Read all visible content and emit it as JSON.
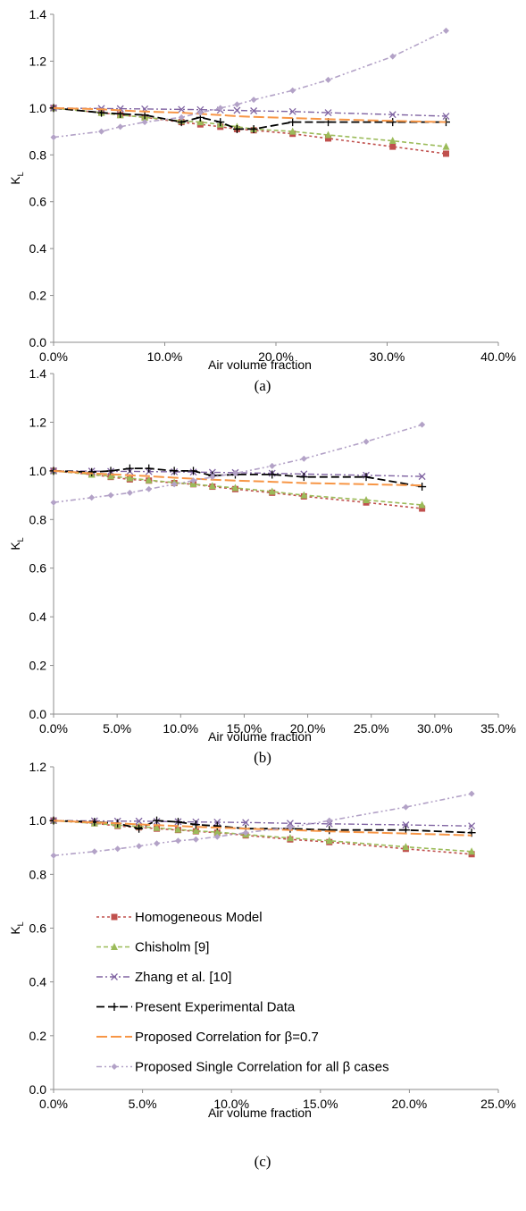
{
  "colors": {
    "homogeneous": "#c0504d",
    "chisholm": "#9bbb59",
    "zhang": "#8064a2",
    "experimental": "#000000",
    "proposed": "#f79646",
    "single": "#b3a2c7"
  },
  "legend": [
    {
      "key": "homogeneous",
      "label": "Homogeneous Model"
    },
    {
      "key": "chisholm",
      "label": "Chisholm [9]"
    },
    {
      "key": "zhang",
      "label": "Zhang et al. [10]"
    },
    {
      "key": "experimental",
      "label": "Present Experimental Data"
    },
    {
      "key": "proposed",
      "label": "Proposed Correlation for  β=0.7"
    },
    {
      "key": "single",
      "label": "Proposed Single Correlation for all β cases"
    }
  ],
  "chart_data": [
    {
      "type": "line",
      "caption": "(a)",
      "xlabel": "Air volume fraction",
      "ylabel": "K",
      "ylabel_sub": "L",
      "xlim": [
        0,
        40
      ],
      "ylim": [
        0,
        1.4
      ],
      "xticks": [
        "0.0%",
        "10.0%",
        "20.0%",
        "30.0%",
        "40.0%"
      ],
      "yticks": [
        "0.0",
        "0.2",
        "0.4",
        "0.6",
        "0.8",
        "1.0",
        "1.2",
        "1.4"
      ],
      "series": [
        {
          "key": "homogeneous",
          "x": [
            0,
            4.3,
            6,
            8.2,
            11.5,
            13.2,
            15,
            16.5,
            18,
            21.5,
            24.7,
            30.5,
            35.3
          ],
          "y": [
            1.0,
            0.98,
            0.97,
            0.96,
            0.94,
            0.93,
            0.92,
            0.91,
            0.905,
            0.89,
            0.87,
            0.835,
            0.805
          ]
        },
        {
          "key": "chisholm",
          "x": [
            0,
            4.3,
            6,
            8.2,
            11.5,
            13.2,
            15,
            16.5,
            18,
            21.5,
            24.7,
            30.5,
            35.3
          ],
          "y": [
            1.0,
            0.98,
            0.97,
            0.96,
            0.945,
            0.94,
            0.93,
            0.92,
            0.91,
            0.9,
            0.885,
            0.86,
            0.835
          ]
        },
        {
          "key": "zhang",
          "x": [
            0,
            4.3,
            6,
            8.2,
            11.5,
            13.2,
            15,
            16.5,
            18,
            21.5,
            24.7,
            30.5,
            35.3
          ],
          "y": [
            1.0,
            0.998,
            0.997,
            0.996,
            0.994,
            0.993,
            0.991,
            0.99,
            0.988,
            0.985,
            0.98,
            0.972,
            0.965
          ]
        },
        {
          "key": "experimental",
          "x": [
            0,
            4.3,
            6,
            8.2,
            11.5,
            13.2,
            15,
            16.5,
            18,
            21.5,
            24.7,
            30.5,
            35.3
          ],
          "y": [
            1.0,
            0.98,
            0.975,
            0.97,
            0.94,
            0.96,
            0.94,
            0.91,
            0.91,
            0.94,
            0.94,
            0.94,
            0.94
          ]
        },
        {
          "key": "proposed",
          "x": [
            0,
            4.3,
            6,
            8.2,
            11.5,
            13.2,
            15,
            16.5,
            18,
            21.5,
            24.7,
            30.5,
            35.3
          ],
          "y": [
            1.0,
            0.995,
            0.99,
            0.985,
            0.98,
            0.975,
            0.97,
            0.965,
            0.962,
            0.957,
            0.952,
            0.945,
            0.94
          ]
        },
        {
          "key": "single",
          "x": [
            0,
            4.3,
            6,
            8.2,
            11.5,
            13.2,
            15,
            16.5,
            18,
            21.5,
            24.7,
            30.5,
            35.3
          ],
          "y": [
            0.875,
            0.9,
            0.92,
            0.94,
            0.96,
            0.98,
            1.0,
            1.015,
            1.035,
            1.075,
            1.12,
            1.22,
            1.33
          ]
        }
      ]
    },
    {
      "type": "line",
      "caption": "(b)",
      "xlabel": "Air volume fraction",
      "ylabel": "K",
      "ylabel_sub": "L",
      "xlim": [
        0,
        35
      ],
      "ylim": [
        0,
        1.4
      ],
      "xticks": [
        "0.0%",
        "5.0%",
        "10.0%",
        "15.0%",
        "20.0%",
        "25.0%",
        "30.0%",
        "35.0%"
      ],
      "yticks": [
        "0.0",
        "0.2",
        "0.4",
        "0.6",
        "0.8",
        "1.0",
        "1.2",
        "1.4"
      ],
      "series": [
        {
          "key": "homogeneous",
          "x": [
            0,
            3,
            4.5,
            6,
            7.5,
            9.5,
            11,
            12.5,
            14.3,
            17.2,
            19.7,
            24.6,
            29
          ],
          "y": [
            1.0,
            0.985,
            0.975,
            0.965,
            0.96,
            0.95,
            0.945,
            0.935,
            0.925,
            0.91,
            0.895,
            0.87,
            0.845
          ]
        },
        {
          "key": "chisholm",
          "x": [
            0,
            3,
            4.5,
            6,
            7.5,
            9.5,
            11,
            12.5,
            14.3,
            17.2,
            19.7,
            24.6,
            29
          ],
          "y": [
            1.0,
            0.985,
            0.978,
            0.97,
            0.962,
            0.952,
            0.946,
            0.938,
            0.93,
            0.915,
            0.9,
            0.88,
            0.86
          ]
        },
        {
          "key": "zhang",
          "x": [
            0,
            3,
            4.5,
            6,
            7.5,
            9.5,
            11,
            12.5,
            14.3,
            17.2,
            19.7,
            24.6,
            29
          ],
          "y": [
            1.0,
            0.999,
            0.998,
            0.998,
            0.997,
            0.996,
            0.995,
            0.994,
            0.993,
            0.99,
            0.987,
            0.982,
            0.977
          ]
        },
        {
          "key": "experimental",
          "x": [
            0,
            3,
            4.5,
            6,
            7.5,
            9.5,
            11,
            12.5,
            14.3,
            17.2,
            19.7,
            24.6,
            29
          ],
          "y": [
            1.0,
            0.995,
            1.0,
            1.01,
            1.01,
            1.0,
            1.0,
            0.98,
            0.985,
            0.985,
            0.975,
            0.975,
            0.935
          ]
        },
        {
          "key": "proposed",
          "x": [
            0,
            3,
            4.5,
            6,
            7.5,
            9.5,
            11,
            12.5,
            14.3,
            17.2,
            19.7,
            24.6,
            29
          ],
          "y": [
            1.0,
            0.99,
            0.986,
            0.982,
            0.978,
            0.972,
            0.968,
            0.964,
            0.96,
            0.955,
            0.95,
            0.945,
            0.94
          ]
        },
        {
          "key": "single",
          "x": [
            0,
            3,
            4.5,
            6,
            7.5,
            9.5,
            11,
            12.5,
            14.3,
            17.2,
            19.7,
            24.6,
            29
          ],
          "y": [
            0.87,
            0.89,
            0.9,
            0.91,
            0.925,
            0.945,
            0.96,
            0.975,
            0.99,
            1.02,
            1.05,
            1.12,
            1.19
          ]
        }
      ]
    },
    {
      "type": "line",
      "caption": "(c)",
      "xlabel": "Air volume fraction",
      "ylabel": "K",
      "ylabel_sub": "L",
      "xlim": [
        0,
        25
      ],
      "ylim": [
        0,
        1.2
      ],
      "xticks": [
        "0.0%",
        "5.0%",
        "10.0%",
        "15.0%",
        "20.0%",
        "25.0%"
      ],
      "yticks": [
        "0.0",
        "0.2",
        "0.4",
        "0.6",
        "0.8",
        "1.0",
        "1.2"
      ],
      "legend_position": "lower-left",
      "series": [
        {
          "key": "homogeneous",
          "x": [
            0,
            2.3,
            3.6,
            4.8,
            5.8,
            7,
            8,
            9.2,
            10.8,
            13.3,
            15.5,
            19.8,
            23.5
          ],
          "y": [
            1.0,
            0.99,
            0.98,
            0.975,
            0.97,
            0.965,
            0.96,
            0.955,
            0.945,
            0.93,
            0.92,
            0.895,
            0.875
          ]
        },
        {
          "key": "chisholm",
          "x": [
            0,
            2.3,
            3.6,
            4.8,
            5.8,
            7,
            8,
            9.2,
            10.8,
            13.3,
            15.5,
            19.8,
            23.5
          ],
          "y": [
            1.0,
            0.99,
            0.983,
            0.978,
            0.973,
            0.967,
            0.962,
            0.957,
            0.948,
            0.935,
            0.925,
            0.902,
            0.885
          ]
        },
        {
          "key": "zhang",
          "x": [
            0,
            2.3,
            3.6,
            4.8,
            5.8,
            7,
            8,
            9.2,
            10.8,
            13.3,
            15.5,
            19.8,
            23.5
          ],
          "y": [
            1.0,
            0.999,
            0.998,
            0.998,
            0.997,
            0.996,
            0.995,
            0.994,
            0.993,
            0.99,
            0.988,
            0.984,
            0.98
          ]
        },
        {
          "key": "experimental",
          "x": [
            0,
            2.3,
            3.6,
            4.8,
            5.8,
            7,
            8,
            9.2,
            10.8,
            13.3,
            15.5,
            19.8,
            23.5
          ],
          "y": [
            1.0,
            0.995,
            0.99,
            0.97,
            1.0,
            0.995,
            0.985,
            0.98,
            0.97,
            0.97,
            0.965,
            0.965,
            0.955
          ]
        },
        {
          "key": "proposed",
          "x": [
            0,
            2.3,
            3.6,
            4.8,
            5.8,
            7,
            8,
            9.2,
            10.8,
            13.3,
            15.5,
            19.8,
            23.5
          ],
          "y": [
            1.0,
            0.993,
            0.99,
            0.986,
            0.983,
            0.98,
            0.977,
            0.974,
            0.97,
            0.965,
            0.96,
            0.952,
            0.945
          ]
        },
        {
          "key": "single",
          "x": [
            0,
            2.3,
            3.6,
            4.8,
            5.8,
            7,
            8,
            9.2,
            10.8,
            13.3,
            15.5,
            19.8,
            23.5
          ],
          "y": [
            0.87,
            0.885,
            0.895,
            0.905,
            0.915,
            0.925,
            0.93,
            0.94,
            0.955,
            0.975,
            1.0,
            1.05,
            1.1
          ]
        }
      ]
    }
  ]
}
